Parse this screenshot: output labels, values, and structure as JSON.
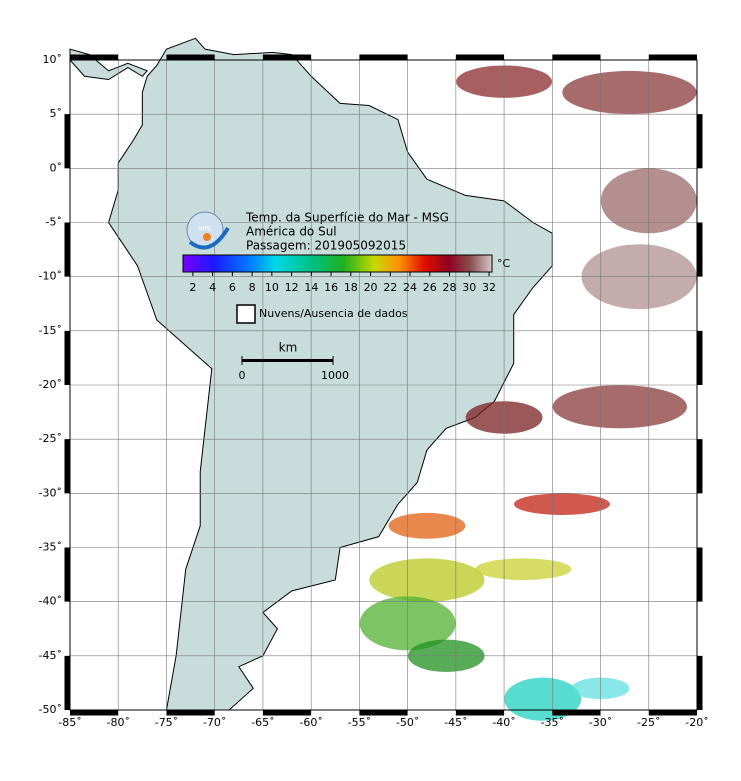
{
  "map": {
    "title": "Temp. da Superfície do Mar - MSG",
    "region": "América do Sul",
    "pass": "Passagem: 201905092015",
    "logo": "INPE",
    "colorbar": {
      "unit": "°C",
      "lim": [
        1,
        32.3
      ],
      "ticks": [
        2,
        4,
        6,
        8,
        10,
        12,
        14,
        16,
        18,
        20,
        22,
        24,
        26,
        28,
        30,
        32
      ]
    },
    "legend": "Nuvens/Ausencia de dados",
    "scale": {
      "unit": "km",
      "ticks": [
        0,
        1000
      ]
    },
    "xlim": [
      -85,
      -20
    ],
    "ylim": [
      -50,
      10
    ],
    "xticks": [
      {
        "value": -85,
        "label": "-85˚"
      },
      {
        "value": -80,
        "label": "-80˚"
      },
      {
        "value": -75,
        "label": "-75˚"
      },
      {
        "value": -70,
        "label": "-70˚"
      },
      {
        "value": -65,
        "label": "-65˚"
      },
      {
        "value": -60,
        "label": "-60˚"
      },
      {
        "value": -55,
        "label": "-55˚"
      },
      {
        "value": -50,
        "label": "-50˚"
      },
      {
        "value": -45,
        "label": "-45˚"
      },
      {
        "value": -40,
        "label": "-40˚"
      },
      {
        "value": -35,
        "label": "-35˚"
      },
      {
        "value": -30,
        "label": "-30˚"
      },
      {
        "value": -25,
        "label": "-25˚"
      },
      {
        "value": -20,
        "label": "-20˚"
      }
    ],
    "yticks": [
      {
        "value": 10,
        "label": "10˚"
      },
      {
        "value": 5,
        "label": "5˚"
      },
      {
        "value": 0,
        "label": "0˚"
      },
      {
        "value": -5,
        "label": "-5˚"
      },
      {
        "value": -10,
        "label": "-10˚"
      },
      {
        "value": -15,
        "label": "-15˚"
      },
      {
        "value": -20,
        "label": "-20˚"
      },
      {
        "value": -25,
        "label": "-25˚"
      },
      {
        "value": -30,
        "label": "-30˚"
      },
      {
        "value": -35,
        "label": "-35˚"
      },
      {
        "value": -40,
        "label": "-40˚"
      },
      {
        "value": -45,
        "label": "-45˚"
      },
      {
        "value": -50,
        "label": "-50˚"
      }
    ]
  }
}
